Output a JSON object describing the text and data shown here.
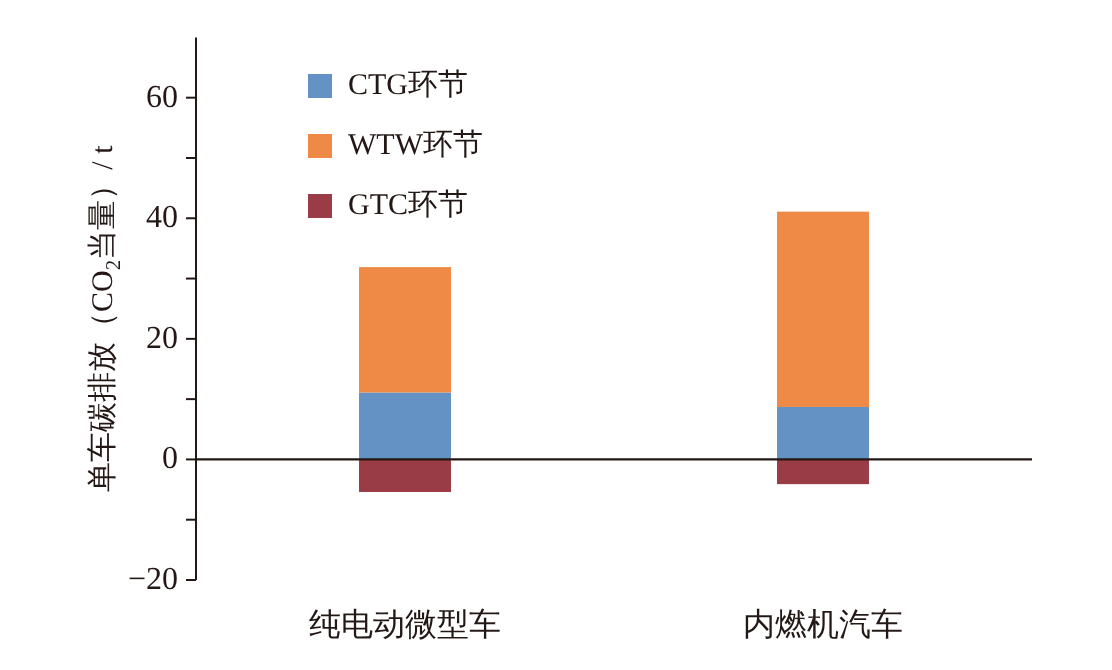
{
  "chart_data": {
    "type": "bar",
    "stacked": true,
    "ylabel": "单车碳排放（CO$_{2}$当量）/ t",
    "categories": [
      "纯电动微型车",
      "内燃机汽车"
    ],
    "series": [
      {
        "name": "CTG环节",
        "color": "#6592c4",
        "values": [
          11.1,
          8.7
        ]
      },
      {
        "name": "WTW环节",
        "color": "#ee8a46",
        "values": [
          20.8,
          32.4
        ]
      },
      {
        "name": "GTC环节",
        "color": "#9a3c45",
        "values": [
          -5.4,
          -4.1
        ]
      }
    ],
    "ylim": [
      -20,
      70
    ],
    "yticks": [
      -20,
      {
        "value": -10,
        "label": null
      },
      0,
      {
        "value": 10,
        "label": null
      },
      20,
      {
        "value": 30,
        "label": null
      },
      40,
      {
        "value": 50,
        "label": null
      },
      60
    ],
    "ref_lines": [
      {
        "axis": "y",
        "value": 0,
        "color": "#231815"
      }
    ],
    "grid": false,
    "legend": "top left"
  }
}
